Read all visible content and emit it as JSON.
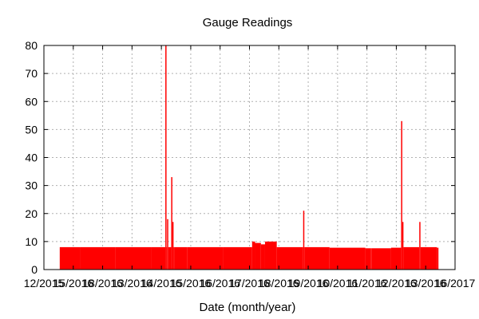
{
  "chart_data": {
    "type": "bar",
    "title": "Gauge Readings",
    "xlabel": "Date (month/year)",
    "ylabel": "",
    "ylim": [
      0,
      80
    ],
    "yticks": [
      0,
      10,
      20,
      30,
      40,
      50,
      60,
      70,
      80
    ],
    "xlim": [
      "2015-12",
      "2017-11"
    ],
    "x_tick_labels": [
      "12/2015",
      "15/2016",
      "18/2016",
      "13/2016",
      "14/2016",
      "15/2016",
      "16/2016",
      "17/2016",
      "18/2016",
      "19/2016",
      "10/2016",
      "11/2016",
      "12/2016",
      "13/2016",
      "16/2017"
    ],
    "grid": true,
    "colors": {
      "series": "#ff0000",
      "grid": "#b0b0b0",
      "frame": "#000000"
    },
    "series": [
      {
        "color": "#ff0000",
        "x": [
          "2015-12-28",
          "2016-02-01",
          "2016-04-01",
          "2016-06-01",
          "2016-06-25",
          "2016-06-28",
          "2016-07-05",
          "2016-07-07",
          "2016-07-10",
          "2016-08-01",
          "2016-10-01",
          "2016-11-20",
          "2016-11-25",
          "2016-12-05",
          "2016-12-12",
          "2017-01-01",
          "2017-02-15",
          "2017-04-01",
          "2017-06-01",
          "2017-06-10",
          "2017-06-12",
          "2017-07-15",
          "2017-08-01",
          "2017-08-03",
          "2017-09-01",
          "2017-10-01"
        ],
        "values": [
          8,
          8,
          8,
          8,
          80,
          18,
          33,
          17,
          8,
          8,
          8,
          10,
          9.5,
          9,
          10,
          8,
          21,
          7.8,
          7.6,
          7.6,
          7.6,
          7.8,
          53,
          17,
          17,
          7.8
        ]
      }
    ]
  }
}
